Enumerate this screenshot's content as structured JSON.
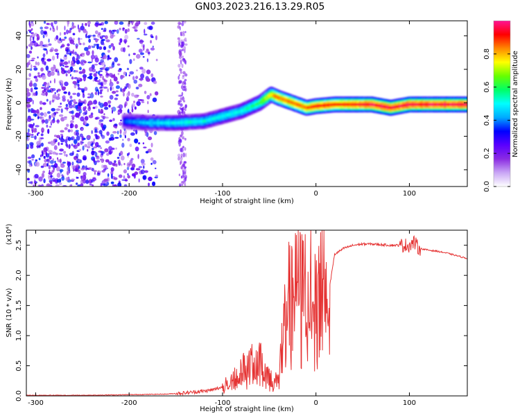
{
  "title": "GN03.2023.216.13.29.R05",
  "chart_data": [
    {
      "type": "heatmap",
      "xlabel": "Height of straight line (km)",
      "ylabel": "Frequency (Hz)",
      "xlim": [
        -310,
        162
      ],
      "ylim": [
        -50,
        49
      ],
      "x_ticks": [
        -300,
        -200,
        -100,
        0,
        100
      ],
      "y_ticks": [
        40,
        20,
        0,
        -20,
        -40
      ],
      "colorbar": {
        "label": "Normalized spectral amplitude",
        "range": [
          0,
          1
        ],
        "ticks": [
          0.0,
          0.2,
          0.4,
          0.6,
          0.8
        ],
        "colors": [
          "#ffffff",
          "#c9a6f5",
          "#8a2be2",
          "#5a00ff",
          "#0000ff",
          "#00aaff",
          "#00ffff",
          "#00ff66",
          "#66ff00",
          "#ffff00",
          "#ff8800",
          "#ff0000",
          "#ff1493"
        ]
      },
      "ridge": {
        "x": [
          -205,
          -180,
          -150,
          -120,
          -100,
          -80,
          -60,
          -48,
          -40,
          -30,
          -20,
          -10,
          0,
          20,
          40,
          60,
          80,
          100,
          120,
          140,
          162
        ],
        "y": [
          -11,
          -12,
          -12,
          -11,
          -8,
          -5,
          0,
          5,
          3,
          1,
          -1,
          -3,
          -2,
          -1,
          -1,
          -1,
          -3,
          -1,
          -1,
          -1,
          -1
        ],
        "amplitude": [
          0.35,
          0.45,
          0.5,
          0.5,
          0.5,
          0.5,
          0.6,
          0.75,
          0.85,
          0.85,
          0.85,
          0.85,
          0.9,
          0.9,
          0.9,
          0.95,
          0.95,
          0.95,
          0.95,
          0.95,
          0.95
        ]
      },
      "noise_region": {
        "x_range": [
          -310,
          -170
        ],
        "y_range": [
          -50,
          49
        ],
        "amplitude": 0.3
      }
    },
    {
      "type": "line",
      "xlabel": "Height of straight line (km)",
      "ylabel": "SNR (10 * v/v)",
      "y_scale_label": "(x10⁴)",
      "xlim": [
        -310,
        162
      ],
      "ylim": [
        0,
        2.75
      ],
      "x_ticks": [
        -300,
        -200,
        -100,
        0,
        100
      ],
      "y_ticks": [
        0.0,
        0.5,
        1.0,
        1.5,
        2.0,
        2.5
      ],
      "series": [
        {
          "color": "#e53333",
          "x": [
            -310,
            -250,
            -200,
            -160,
            -140,
            -120,
            -110,
            -100,
            -90,
            -80,
            -70,
            -60,
            -50,
            -45,
            -40,
            -35,
            -30,
            -25,
            -20,
            -15,
            -10,
            -5,
            0,
            5,
            10,
            15,
            20,
            25,
            30,
            40,
            50,
            60,
            70,
            80,
            90,
            100,
            105,
            110,
            120,
            130,
            140,
            150,
            162
          ],
          "y": [
            0.01,
            0.01,
            0.02,
            0.03,
            0.05,
            0.08,
            0.1,
            0.15,
            0.3,
            0.45,
            0.55,
            0.6,
            0.35,
            0.2,
            0.35,
            1.1,
            1.7,
            1.6,
            1.9,
            1.8,
            2.0,
            2.1,
            2.0,
            2.2,
            2.25,
            1.85,
            2.35,
            2.4,
            2.45,
            2.5,
            2.52,
            2.52,
            2.51,
            2.5,
            2.5,
            2.5,
            2.55,
            2.45,
            2.42,
            2.4,
            2.37,
            2.33,
            2.28
          ]
        }
      ]
    }
  ]
}
